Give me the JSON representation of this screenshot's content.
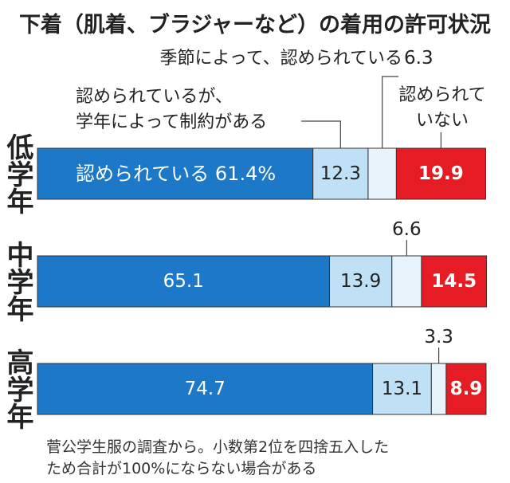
{
  "chart_data": {
    "type": "bar",
    "orientation": "horizontal-stacked-100",
    "title": "下着（肌着、ブラジャーなど）の着用の許可状況",
    "categories": [
      "低学年",
      "中学年",
      "高学年"
    ],
    "series": [
      {
        "name": "認められている",
        "values": [
          61.4,
          65.1,
          74.7
        ],
        "color": "#1e78c8",
        "label_color": "#ffffff"
      },
      {
        "name": "認められているが、学年によって制約がある",
        "values": [
          12.3,
          13.9,
          13.1
        ],
        "color": "#bfe0f5",
        "label_color": "#222222"
      },
      {
        "name": "季節によって、認められている",
        "values": [
          6.3,
          6.6,
          3.3
        ],
        "color": "#e8f3fc",
        "label_color": "#222222"
      },
      {
        "name": "認められていない",
        "values": [
          19.9,
          14.5,
          8.9
        ],
        "color": "#e51c23",
        "label_color": "#ffffff"
      }
    ],
    "data_labels": [
      [
        "認められている 61.4%",
        "12.3",
        "6.3",
        "19.9"
      ],
      [
        "65.1",
        "13.9",
        "6.6",
        "14.5"
      ],
      [
        "74.7",
        "13.1",
        "3.3",
        "8.9"
      ]
    ],
    "annotations": {
      "seasonal": "季節によって、認められている",
      "restricted_line1": "認められているが、",
      "restricted_line2": "学年によって制約がある",
      "not_allowed_line1": "認められて",
      "not_allowed_line2": "いない"
    },
    "footnote_line1": "菅公学生服の調査から。小数第2位を四捨五入した",
    "footnote_line2": "ため合計が100%にならない場合がある",
    "colors": {
      "text": "#222222",
      "bar_border": "#333333",
      "leader": "#444444"
    }
  }
}
